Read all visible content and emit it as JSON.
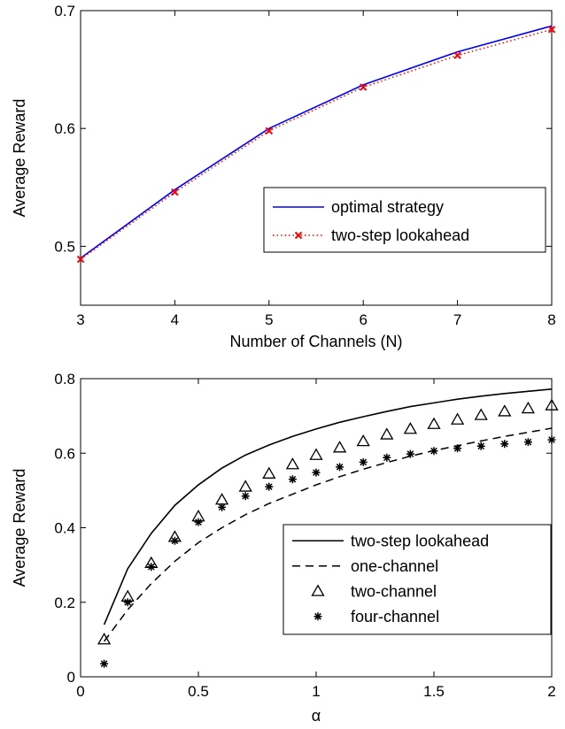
{
  "chart_data": [
    {
      "type": "line",
      "xlabel": "Number of Channels (N)",
      "ylabel": "Average Reward",
      "xlim": [
        3,
        8
      ],
      "ylim": [
        0.45,
        0.7
      ],
      "xticks": [
        "3",
        "4",
        "5",
        "6",
        "7",
        "8"
      ],
      "yticks": [
        "0.5",
        "0.6",
        "0.7"
      ],
      "x": [
        3,
        4,
        5,
        6,
        7,
        8
      ],
      "series": [
        {
          "name": "optimal strategy",
          "color": "#0000ff",
          "style": "solid",
          "marker": "none",
          "values": [
            0.49,
            0.548,
            0.6,
            0.637,
            0.665,
            0.687
          ]
        },
        {
          "name": "two-step lookahead",
          "color": "#ff0000",
          "style": "dotted",
          "marker": "x",
          "values": [
            0.489,
            0.546,
            0.598,
            0.635,
            0.662,
            0.684
          ]
        }
      ],
      "legend": "center-right",
      "grid": false
    },
    {
      "type": "line",
      "xlabel": "α",
      "ylabel": "Average Reward",
      "xlim": [
        0,
        2
      ],
      "ylim": [
        0,
        0.8
      ],
      "xticks": [
        "0",
        "0.5",
        "1",
        "1.5",
        "2"
      ],
      "yticks": [
        "0",
        "0.2",
        "0.4",
        "0.6",
        "0.8"
      ],
      "series": [
        {
          "name": "two-step lookahead",
          "color": "#000000",
          "style": "solid",
          "marker": "none",
          "x": [
            0.1,
            0.2,
            0.3,
            0.4,
            0.5,
            0.6,
            0.7,
            0.8,
            0.9,
            1.0,
            1.1,
            1.2,
            1.3,
            1.4,
            1.5,
            1.6,
            1.7,
            1.8,
            1.9,
            2.0
          ],
          "values": [
            0.14,
            0.29,
            0.385,
            0.46,
            0.515,
            0.56,
            0.595,
            0.622,
            0.645,
            0.665,
            0.683,
            0.698,
            0.712,
            0.725,
            0.735,
            0.745,
            0.753,
            0.76,
            0.766,
            0.772
          ]
        },
        {
          "name": "one-channel",
          "color": "#000000",
          "style": "dashed",
          "marker": "none",
          "x": [
            0.1,
            0.2,
            0.3,
            0.4,
            0.5,
            0.6,
            0.7,
            0.8,
            0.9,
            1.0,
            1.1,
            1.2,
            1.3,
            1.4,
            1.5,
            1.6,
            1.7,
            1.8,
            1.9,
            2.0
          ],
          "values": [
            0.095,
            0.18,
            0.25,
            0.31,
            0.36,
            0.4,
            0.435,
            0.465,
            0.49,
            0.515,
            0.537,
            0.557,
            0.575,
            0.592,
            0.607,
            0.62,
            0.633,
            0.645,
            0.656,
            0.667
          ]
        },
        {
          "name": "two-channel",
          "color": "#000000",
          "style": "none",
          "marker": "triangle",
          "x": [
            0.1,
            0.2,
            0.3,
            0.4,
            0.5,
            0.6,
            0.7,
            0.8,
            0.9,
            1.0,
            1.1,
            1.2,
            1.3,
            1.4,
            1.5,
            1.6,
            1.7,
            1.8,
            1.9,
            2.0
          ],
          "values": [
            0.1,
            0.215,
            0.305,
            0.375,
            0.43,
            0.475,
            0.51,
            0.545,
            0.57,
            0.595,
            0.615,
            0.632,
            0.65,
            0.665,
            0.678,
            0.69,
            0.702,
            0.712,
            0.72,
            0.728
          ]
        },
        {
          "name": "four-channel",
          "color": "#000000",
          "style": "none",
          "marker": "asterisk",
          "x": [
            0.1,
            0.2,
            0.3,
            0.4,
            0.5,
            0.6,
            0.7,
            0.8,
            0.9,
            1.0,
            1.1,
            1.2,
            1.3,
            1.4,
            1.5,
            1.6,
            1.7,
            1.8,
            1.9,
            2.0
          ],
          "values": [
            0.035,
            0.2,
            0.295,
            0.365,
            0.415,
            0.455,
            0.485,
            0.51,
            0.53,
            0.548,
            0.563,
            0.576,
            0.588,
            0.598,
            0.606,
            0.613,
            0.619,
            0.625,
            0.63,
            0.636
          ]
        }
      ],
      "legend": "bottom-right",
      "grid": false
    }
  ]
}
